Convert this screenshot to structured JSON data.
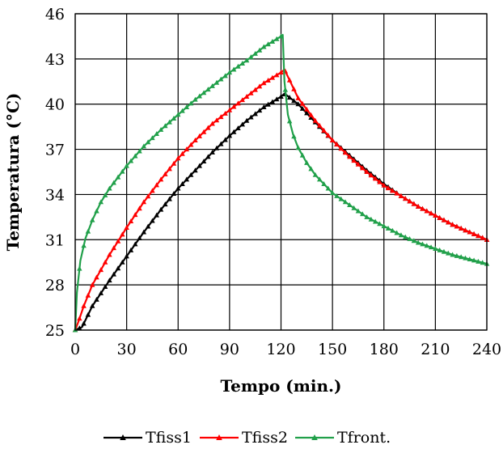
{
  "chart_data": {
    "type": "line",
    "title": "",
    "xlabel": "Tempo (min.)",
    "ylabel": "Temperatura (°C)",
    "xlim": [
      0,
      240
    ],
    "ylim": [
      25,
      46
    ],
    "xticks": [
      0,
      30,
      60,
      90,
      120,
      150,
      180,
      210,
      240
    ],
    "yticks": [
      25,
      28,
      31,
      34,
      37,
      40,
      43,
      46
    ],
    "xtick_labels": [
      "0",
      "30",
      "60",
      "90",
      "120",
      "150",
      "180",
      "210",
      "240"
    ],
    "ytick_labels": [
      "25",
      "28",
      "31",
      "34",
      "37",
      "40",
      "43",
      "46"
    ],
    "grid": true,
    "legend_position": "bottom",
    "series": [
      {
        "name": "Tfiss1",
        "color": "#000000",
        "marker": "triangle",
        "x": [
          0,
          4,
          10,
          20,
          30,
          40,
          50,
          60,
          70,
          80,
          90,
          100,
          110,
          120,
          122,
          130,
          140,
          150,
          160,
          170,
          180,
          190,
          200,
          210,
          220,
          230,
          240
        ],
        "y": [
          25.0,
          25.2,
          26.6,
          28.3,
          29.9,
          31.5,
          33.0,
          34.4,
          35.6,
          36.8,
          37.9,
          38.9,
          39.8,
          40.5,
          40.7,
          40.0,
          38.8,
          37.6,
          36.6,
          35.6,
          34.7,
          33.9,
          33.2,
          32.6,
          32.0,
          31.5,
          31.0
        ]
      },
      {
        "name": "Tfiss2",
        "color": "#ff0000",
        "marker": "triangle",
        "x": [
          0,
          2,
          5,
          10,
          20,
          30,
          40,
          50,
          60,
          70,
          80,
          90,
          100,
          110,
          120,
          122,
          130,
          140,
          150,
          160,
          170,
          180,
          190,
          200,
          210,
          220,
          230,
          240
        ],
        "y": [
          25.0,
          25.6,
          26.6,
          28.0,
          30.0,
          31.8,
          33.5,
          35.0,
          36.4,
          37.6,
          38.7,
          39.6,
          40.5,
          41.4,
          42.1,
          42.3,
          40.4,
          38.9,
          37.6,
          36.5,
          35.5,
          34.6,
          33.9,
          33.2,
          32.6,
          32.0,
          31.5,
          31.0
        ]
      },
      {
        "name": "Tfront.",
        "color": "#21a04a",
        "marker": "triangle",
        "x": [
          0,
          1,
          3,
          6,
          10,
          15,
          20,
          30,
          40,
          50,
          60,
          70,
          80,
          90,
          100,
          110,
          120,
          121,
          122,
          124,
          127,
          130,
          135,
          140,
          150,
          160,
          170,
          180,
          190,
          200,
          210,
          220,
          230,
          240
        ],
        "y": [
          25.0,
          27.5,
          29.6,
          31.1,
          32.3,
          33.5,
          34.4,
          35.9,
          37.2,
          38.3,
          39.3,
          40.3,
          41.2,
          42.1,
          42.9,
          43.8,
          44.5,
          44.6,
          41.5,
          39.3,
          38.0,
          37.1,
          36.1,
          35.3,
          34.1,
          33.3,
          32.5,
          31.9,
          31.3,
          30.8,
          30.4,
          30.0,
          29.7,
          29.4
        ]
      }
    ]
  }
}
